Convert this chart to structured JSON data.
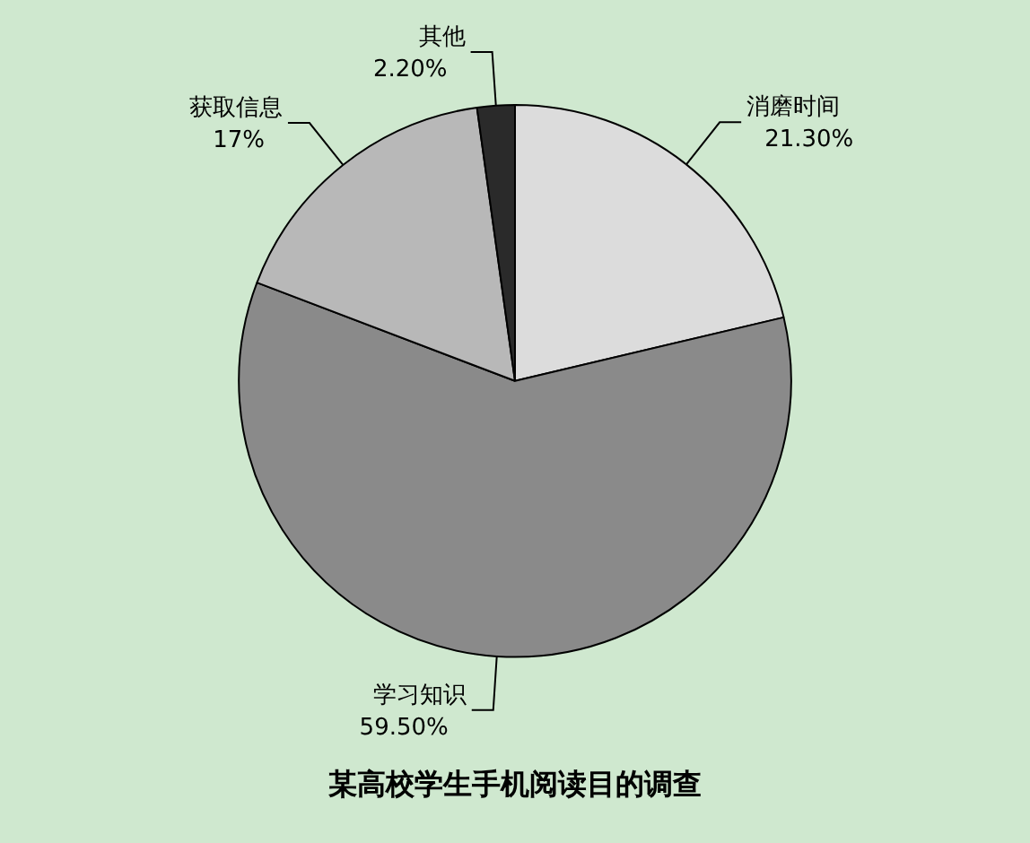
{
  "chart_data": {
    "type": "pie",
    "title": "某高校学生手机阅读目的调查",
    "categories": [
      "消磨时间",
      "学习知识",
      "获取信息",
      "其他"
    ],
    "values": [
      21.3,
      59.5,
      17,
      2.2
    ],
    "colors": [
      "#dcdcdc",
      "#8a8a8a",
      "#b8b8b8",
      "#2a2a2a"
    ],
    "value_labels": [
      "21.30%",
      "59.50%",
      "17%",
      "2.20%"
    ],
    "legend": false
  }
}
